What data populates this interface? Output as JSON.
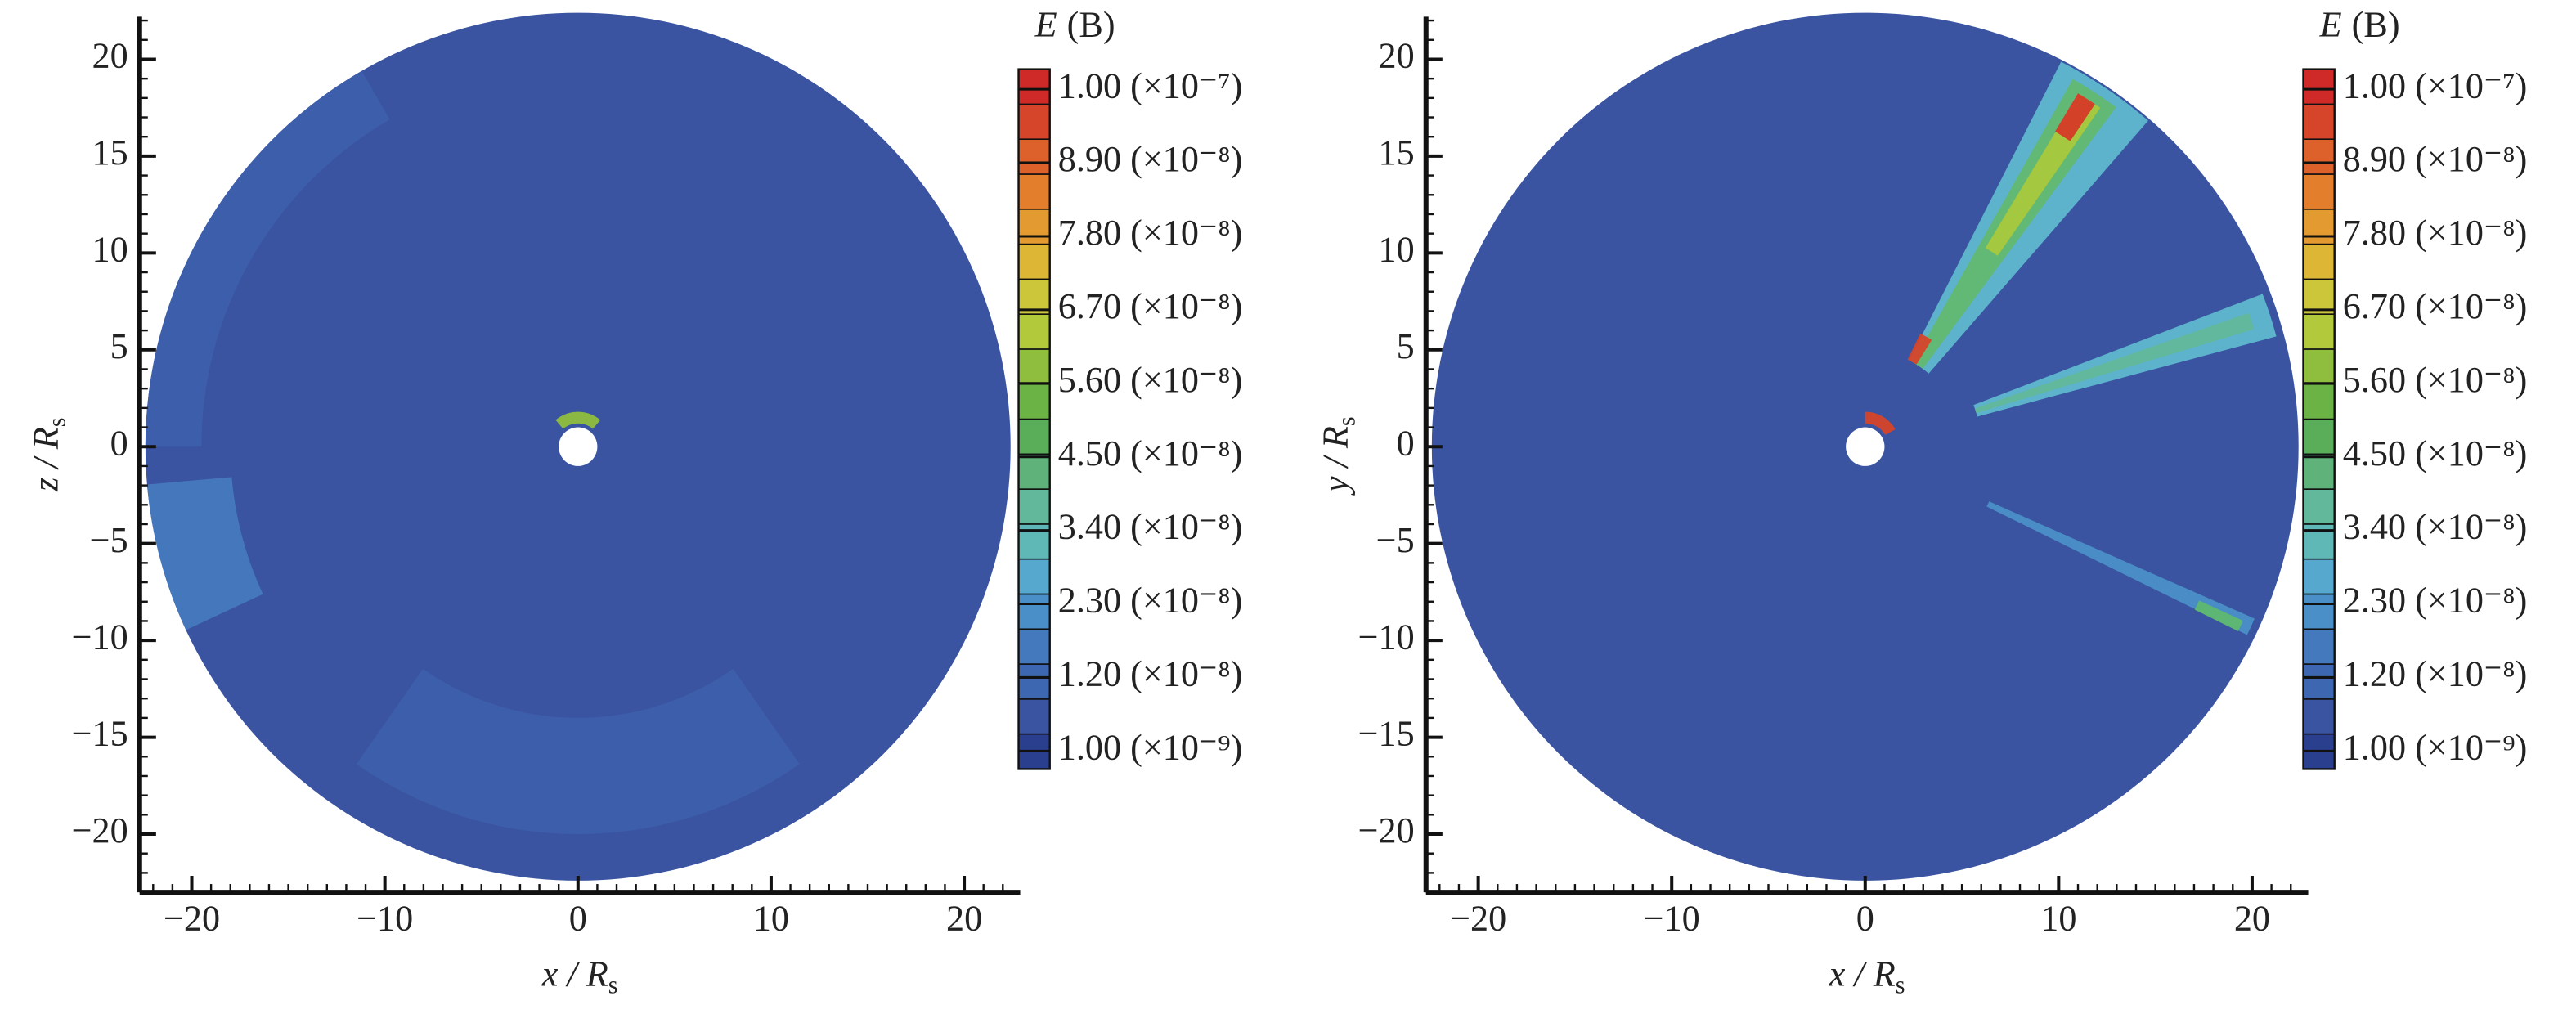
{
  "chart_data": [
    {
      "type": "contour",
      "xlabel": "x / R",
      "xlabel_sub": "s",
      "ylabel": "z / R",
      "ylabel_sub": "s",
      "xlim": [
        -22.7,
        22.9
      ],
      "ylim": [
        -23,
        22.2
      ],
      "xticks": [
        {
          "value": -20,
          "label": "−20"
        },
        {
          "value": -10,
          "label": "−10"
        },
        0,
        10,
        20
      ],
      "yticks": [
        {
          "value": -20,
          "label": "−20"
        },
        {
          "value": -15,
          "label": "−15"
        },
        {
          "value": -10,
          "label": "−10"
        },
        {
          "value": -5,
          "label": "−5"
        },
        0,
        5,
        10,
        15,
        20
      ],
      "minor_step": 1,
      "domain_radius": 22.4,
      "hole_radius": 1.0,
      "background": "#3a54a1",
      "features": [
        {
          "shape": "wedge",
          "angle": 195,
          "half": 10,
          "r0": 18,
          "r1": 22.4,
          "color": "#4479bd"
        },
        {
          "shape": "wedge",
          "angle": 150,
          "half": 30,
          "r0": 19.5,
          "r1": 22.4,
          "color": "#3d5fab"
        },
        {
          "shape": "wedge",
          "angle": 270,
          "half": 35,
          "r0": 14,
          "r1": 20,
          "color": "#3d5fab"
        },
        {
          "shape": "wedge",
          "angle": 0,
          "half": 360,
          "r0": 1.0,
          "r1": 1.9,
          "color": "#4a8fc8"
        },
        {
          "shape": "wedge",
          "angle": 90,
          "half": 40,
          "r0": 1.2,
          "r1": 1.8,
          "color": "#8fbe3e"
        }
      ],
      "colorbar": {
        "title": "E",
        "title_rest": "(B)",
        "clim": [
          -1.7e-09,
          1.03e-07
        ],
        "ticks": [
          {
            "value": 1e-07,
            "label": "1.00 (×10⁻⁷)"
          },
          {
            "value": 8.9e-08,
            "label": "8.90 (×10⁻⁸)"
          },
          {
            "value": 7.8e-08,
            "label": "7.80 (×10⁻⁸)"
          },
          {
            "value": 6.7e-08,
            "label": "6.70 (×10⁻⁸)"
          },
          {
            "value": 5.6e-08,
            "label": "5.60 (×10⁻⁸)"
          },
          {
            "value": 4.5e-08,
            "label": "4.50 (×10⁻⁸)"
          },
          {
            "value": 3.4e-08,
            "label": "3.40 (×10⁻⁸)"
          },
          {
            "value": 2.3e-08,
            "label": "2.30 (×10⁻⁸)"
          },
          {
            "value": 1.2e-08,
            "label": "1.20 (×10⁻⁸)"
          },
          {
            "value": 1e-09,
            "label": "1.00 (×10⁻⁹)"
          }
        ],
        "colors": [
          "#2b3f8f",
          "#3a54a1",
          "#3d67b0",
          "#4479bd",
          "#4a8fc8",
          "#56a8cf",
          "#5fb8b5",
          "#62b89a",
          "#5fb27a",
          "#5aae5a",
          "#6bb344",
          "#8fbe3e",
          "#b2c93c",
          "#ccc63a",
          "#dcb634",
          "#e39a30",
          "#e37e2c",
          "#dd612a",
          "#d64429",
          "#cf2a27"
        ]
      }
    },
    {
      "type": "contour",
      "xlabel": "x / R",
      "xlabel_sub": "s",
      "ylabel": "y / R",
      "ylabel_sub": "s",
      "xlim": [
        -22.7,
        22.9
      ],
      "ylim": [
        -23,
        22.2
      ],
      "xticks": [
        {
          "value": -20,
          "label": "−20"
        },
        {
          "value": -10,
          "label": "−10"
        },
        0,
        10,
        20
      ],
      "yticks": [
        {
          "value": -20,
          "label": "−20"
        },
        {
          "value": -15,
          "label": "−15"
        },
        {
          "value": -10,
          "label": "−10"
        },
        {
          "value": -5,
          "label": "−5"
        },
        0,
        5,
        10,
        15,
        20
      ],
      "minor_step": 1,
      "domain_radius": 22.4,
      "hole_radius": 1.0,
      "background": "#3a54a1",
      "features": [
        {
          "shape": "wedge",
          "angle": 56,
          "half": 7,
          "r0": 5,
          "r1": 22.3,
          "color": "#5fb8cf"
        },
        {
          "shape": "wedge",
          "angle": 57,
          "half": 3.5,
          "r0": 5,
          "r1": 21.8,
          "color": "#62b870"
        },
        {
          "shape": "wedge",
          "angle": 57,
          "half": 1.8,
          "r0": 12,
          "r1": 21.3,
          "color": "#a8c83c"
        },
        {
          "shape": "wedge",
          "angle": 57.5,
          "half": 1.4,
          "r0": 19,
          "r1": 21.3,
          "color": "#d63a28"
        },
        {
          "shape": "wedge",
          "angle": 61,
          "half": 3,
          "r0": 5,
          "r1": 6.5,
          "color": "#d64429"
        },
        {
          "shape": "wedge",
          "angle": 18,
          "half": 3,
          "r0": 6,
          "r1": 22,
          "color": "#5fb8cf"
        },
        {
          "shape": "wedge",
          "angle": 18,
          "half": 1.2,
          "r0": 6,
          "r1": 21,
          "color": "#62b89a"
        },
        {
          "shape": "wedge",
          "angle": -25,
          "half": 1.2,
          "r0": 7,
          "r1": 22,
          "color": "#4a8fc8"
        },
        {
          "shape": "wedge",
          "angle": -25.5,
          "half": 0.8,
          "r0": 19,
          "r1": 21.5,
          "color": "#5fb870"
        },
        {
          "shape": "wedge",
          "angle": 0,
          "half": 360,
          "r0": 1.0,
          "r1": 1.9,
          "color": "#4a8fc8"
        },
        {
          "shape": "wedge",
          "angle": 60,
          "half": 30,
          "r0": 1.2,
          "r1": 1.8,
          "color": "#d64429"
        }
      ],
      "colorbar": {
        "title": "E",
        "title_rest": "(B)",
        "clim": [
          -1.7e-09,
          1.03e-07
        ],
        "ticks": [
          {
            "value": 1e-07,
            "label": "1.00 (×10⁻⁷)"
          },
          {
            "value": 8.9e-08,
            "label": "8.90 (×10⁻⁸)"
          },
          {
            "value": 7.8e-08,
            "label": "7.80 (×10⁻⁸)"
          },
          {
            "value": 6.7e-08,
            "label": "6.70 (×10⁻⁸)"
          },
          {
            "value": 5.6e-08,
            "label": "5.60 (×10⁻⁸)"
          },
          {
            "value": 4.5e-08,
            "label": "4.50 (×10⁻⁸)"
          },
          {
            "value": 3.4e-08,
            "label": "3.40 (×10⁻⁸)"
          },
          {
            "value": 2.3e-08,
            "label": "2.30 (×10⁻⁸)"
          },
          {
            "value": 1.2e-08,
            "label": "1.20 (×10⁻⁸)"
          },
          {
            "value": 1e-09,
            "label": "1.00 (×10⁻⁹)"
          }
        ],
        "colors": [
          "#2b3f8f",
          "#3a54a1",
          "#3d67b0",
          "#4479bd",
          "#4a8fc8",
          "#56a8cf",
          "#5fb8b5",
          "#62b89a",
          "#5fb27a",
          "#5aae5a",
          "#6bb344",
          "#8fbe3e",
          "#b2c93c",
          "#ccc63a",
          "#dcb634",
          "#e39a30",
          "#e37e2c",
          "#dd612a",
          "#d64429",
          "#cf2a27"
        ]
      }
    }
  ]
}
